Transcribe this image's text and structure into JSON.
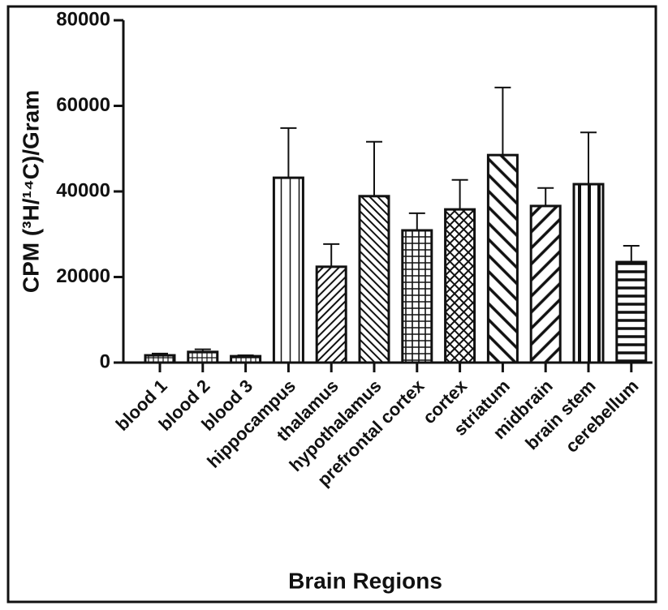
{
  "chart_data": {
    "type": "bar",
    "categories": [
      "blood 1",
      "blood 2",
      "blood 3",
      "hippocampus",
      "thalamus",
      "hypothalamus",
      "prefrontal cortex",
      "cortex",
      "striatum",
      "midbrain",
      "brain stem",
      "cerebellum"
    ],
    "values": [
      1700,
      2500,
      1500,
      43200,
      22400,
      38900,
      30900,
      35800,
      48500,
      36600,
      41700,
      23500
    ],
    "errors": [
      400,
      600,
      200,
      11600,
      5300,
      12700,
      4000,
      6900,
      15800,
      4200,
      12100,
      3800
    ],
    "patterns": [
      "grid-fine",
      "grid-fine",
      "grid-fine",
      "vertical",
      "diagonal-up-fine",
      "diagonal-down-fine",
      "grid",
      "crosshatch",
      "diagonal-down-wide",
      "diagonal-up-wide",
      "vertical-thick",
      "horizontal-thick"
    ],
    "color": "#111111",
    "x_label": "Brain Regions",
    "y_label": "CPM (³H/¹⁴C)/Gram",
    "ylim": [
      0,
      80000
    ],
    "yticks": [
      0,
      20000,
      40000,
      60000,
      80000
    ],
    "grid": false
  }
}
